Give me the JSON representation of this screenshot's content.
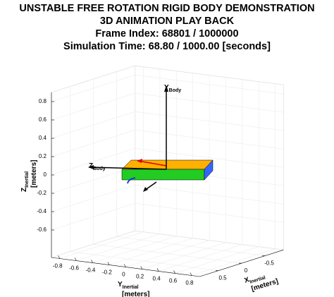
{
  "chart_data": {
    "type": "plot3d",
    "title": "UNSTABLE FREE ROTATION RIGID BODY DEMONSTRATION",
    "subtitles": [
      "3D ANIMATION PLAY BACK",
      "Frame Index:   68801 /  1000000",
      "Simulation Time:    68.80 /  1000.00 [seconds]"
    ],
    "xlabel": {
      "text": "X",
      "subscript": "Inertial",
      "units": "[meters]"
    },
    "ylabel": {
      "text": "Y",
      "subscript": "Inertial",
      "units": "[meters]"
    },
    "zlabel": {
      "text": "Z",
      "subscript": "Inertial",
      "units": "[meters]"
    },
    "xlim": [
      -0.9,
      0.9
    ],
    "ylim": [
      -0.9,
      0.9
    ],
    "zlim": [
      -0.9,
      0.9
    ],
    "xticks": [
      -0.5,
      0,
      0.5
    ],
    "yticks": [
      -0.8,
      -0.6,
      -0.4,
      -0.2,
      0,
      0.2,
      0.4,
      0.6,
      0.8
    ],
    "zticks": [
      -0.6,
      -0.4,
      -0.2,
      0,
      0.2,
      0.4,
      0.6,
      0.8
    ],
    "grid": true,
    "annotations": [
      {
        "text": "Y",
        "subscript": "Body"
      },
      {
        "text": "Z",
        "subscript": "Body"
      }
    ]
  }
}
